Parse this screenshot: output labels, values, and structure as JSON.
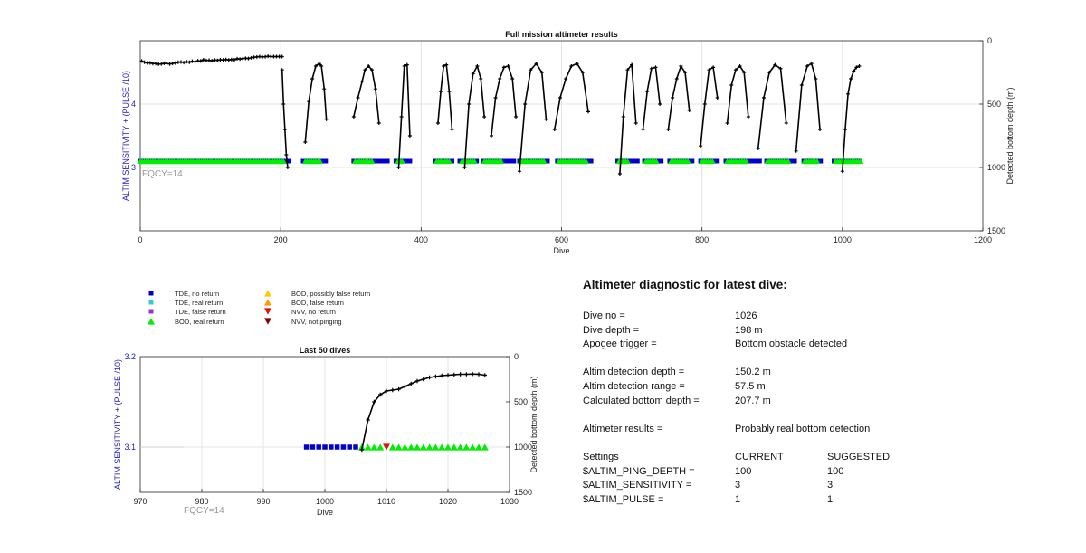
{
  "chart_data": [
    {
      "type": "scatter",
      "title": "Full mission altimeter results",
      "xlabel": "Dive",
      "ylabel_left": "ALTIM SENSITIVITY + (PULSE /10)",
      "ylabel_right": "Detected bottom depth (m)",
      "xlim": [
        0,
        1200
      ],
      "xticks": [
        0,
        200,
        400,
        600,
        800,
        1000,
        1200
      ],
      "ylim_left": [
        2,
        5
      ],
      "yticks_left": [
        3,
        4
      ],
      "ylim_right": [
        1500,
        0
      ],
      "yticks_right": [
        0,
        500,
        1000,
        1500
      ],
      "right_axis_reversed": true,
      "grid": true,
      "annotation": "FQCY=14",
      "setting_level": 3.1,
      "tde_no_return_segments": [
        [
          0,
          215
        ],
        [
          232,
          265
        ],
        [
          304,
          355
        ],
        [
          364,
          385
        ],
        [
          420,
          445
        ],
        [
          455,
          482
        ],
        [
          488,
          532
        ],
        [
          540,
          582
        ],
        [
          594,
          644
        ],
        [
          680,
          708
        ],
        [
          718,
          742
        ],
        [
          754,
          786
        ],
        [
          798,
          825
        ],
        [
          834,
          885
        ],
        [
          892,
          935
        ],
        [
          945,
          972
        ],
        [
          988,
          1026
        ]
      ],
      "bod_real_return_segments": [
        [
          0,
          205
        ],
        [
          235,
          258
        ],
        [
          306,
          332
        ],
        [
          367,
          375
        ],
        [
          422,
          440
        ],
        [
          458,
          478
        ],
        [
          490,
          515
        ],
        [
          542,
          575
        ],
        [
          596,
          636
        ],
        [
          682,
          695
        ],
        [
          720,
          735
        ],
        [
          756,
          780
        ],
        [
          800,
          815
        ],
        [
          836,
          865
        ],
        [
          893,
          925
        ],
        [
          946,
          965
        ],
        [
          990,
          1026
        ]
      ],
      "bottom_depth_segments": [
        {
          "x": [
            2,
            6,
            10,
            14,
            18,
            22,
            26,
            30,
            34,
            38,
            42,
            46,
            50,
            54,
            58,
            62,
            66,
            70,
            74,
            78,
            82,
            86,
            90,
            94,
            98,
            102,
            106,
            110,
            114,
            118,
            122,
            126,
            130,
            134,
            138,
            142,
            146,
            150,
            154,
            158,
            162,
            166,
            170,
            174,
            178,
            182,
            186,
            190,
            194,
            198,
            202
          ],
          "y": [
            160,
            170,
            175,
            175,
            180,
            180,
            185,
            183,
            178,
            180,
            183,
            179,
            176,
            170,
            168,
            172,
            166,
            170,
            162,
            166,
            158,
            160,
            150,
            156,
            154,
            158,
            152,
            155,
            150,
            152,
            148,
            152,
            148,
            150,
            142,
            145,
            140,
            138,
            140,
            135,
            130,
            128,
            125,
            128,
            126,
            122,
            125,
            125,
            125,
            125,
            125
          ]
        },
        {
          "x": [
            202,
            204,
            206,
            208,
            210
          ],
          "y": [
            230,
            500,
            700,
            900,
            1000
          ]
        },
        {
          "x": [
            235,
            240,
            245,
            250,
            255,
            258,
            262,
            265
          ],
          "y": [
            800,
            480,
            300,
            200,
            180,
            200,
            380,
            620
          ]
        },
        {
          "x": [
            304,
            310,
            316,
            320,
            325,
            330,
            335,
            340
          ],
          "y": [
            600,
            450,
            320,
            230,
            200,
            230,
            380,
            650
          ]
        },
        {
          "x": [
            368,
            372,
            376,
            380,
            384
          ],
          "y": [
            1000,
            600,
            200,
            190,
            750
          ]
        },
        {
          "x": [
            424,
            428,
            432,
            436,
            440,
            444
          ],
          "y": [
            650,
            400,
            200,
            190,
            400,
            700
          ]
        },
        {
          "x": [
            462,
            468,
            474,
            480,
            485,
            490
          ],
          "y": [
            1000,
            500,
            260,
            200,
            300,
            600
          ]
        },
        {
          "x": [
            500,
            506,
            512,
            518,
            524,
            530,
            535
          ],
          "y": [
            750,
            450,
            300,
            210,
            200,
            300,
            600
          ]
        },
        {
          "x": [
            540,
            548,
            556,
            564,
            572,
            578
          ],
          "y": [
            1030,
            500,
            230,
            180,
            250,
            620
          ]
        },
        {
          "x": [
            590,
            598,
            606,
            614,
            622,
            630,
            638
          ],
          "y": [
            700,
            450,
            300,
            200,
            180,
            250,
            560
          ]
        },
        {
          "x": [
            683,
            688,
            694,
            700,
            706
          ],
          "y": [
            1050,
            600,
            230,
            190,
            650
          ]
        },
        {
          "x": [
            716,
            722,
            728,
            734,
            740
          ],
          "y": [
            700,
            400,
            220,
            210,
            500
          ]
        },
        {
          "x": [
            752,
            758,
            764,
            770,
            776,
            782
          ],
          "y": [
            700,
            450,
            300,
            200,
            250,
            550
          ]
        },
        {
          "x": [
            798,
            804,
            810,
            816,
            822
          ],
          "y": [
            830,
            500,
            230,
            210,
            450
          ]
        },
        {
          "x": [
            836,
            842,
            848,
            854,
            860,
            866
          ],
          "y": [
            650,
            350,
            230,
            200,
            250,
            600
          ]
        },
        {
          "x": [
            880,
            888,
            896,
            904,
            912,
            920
          ],
          "y": [
            850,
            450,
            250,
            190,
            220,
            650
          ]
        },
        {
          "x": [
            934,
            942,
            950,
            956,
            962,
            968
          ],
          "y": [
            870,
            350,
            200,
            180,
            300,
            700
          ]
        },
        {
          "x": [
            1000,
            1004,
            1008,
            1012,
            1016,
            1020,
            1024
          ],
          "y": [
            1030,
            700,
            420,
            300,
            240,
            210,
            200
          ]
        }
      ]
    },
    {
      "type": "scatter",
      "title": "Last 50 dives",
      "xlabel": "Dive",
      "ylabel_left": "ALTIM SENSITIVITY + (PULSE /10)",
      "ylabel_right": "Detected bottom depth (m)",
      "xlim": [
        970,
        1030
      ],
      "xticks": [
        970,
        980,
        990,
        1000,
        1010,
        1020,
        1030
      ],
      "ylim_left": [
        3.05,
        3.2
      ],
      "yticks_left": [
        3.1,
        3.2
      ],
      "ylim_right": [
        1500,
        0
      ],
      "yticks_right": [
        0,
        500,
        1000,
        1500
      ],
      "right_axis_reversed": true,
      "grid": true,
      "annotation": "FQCY=14",
      "setting_level": 3.1,
      "tde_no_return_x": [
        997,
        998,
        999,
        1000,
        1001,
        1002,
        1003,
        1004,
        1005
      ],
      "bod_real_return_x": [
        1006,
        1007,
        1008,
        1009,
        1011,
        1012,
        1013,
        1014,
        1015,
        1016,
        1017,
        1018,
        1019,
        1020,
        1021,
        1022,
        1023,
        1024,
        1025,
        1026
      ],
      "nvv_no_return_x": [
        1010
      ],
      "bottom_depth": {
        "x": [
          1006,
          1007,
          1008,
          1009,
          1010,
          1011,
          1012,
          1013,
          1014,
          1015,
          1016,
          1017,
          1018,
          1019,
          1020,
          1021,
          1022,
          1023,
          1024,
          1025,
          1026
        ],
        "y": [
          1030,
          700,
          500,
          420,
          380,
          370,
          360,
          330,
          300,
          270,
          250,
          230,
          220,
          210,
          205,
          200,
          195,
          195,
          192,
          195,
          205
        ]
      }
    }
  ],
  "legend": [
    {
      "label": "TDE, no return",
      "marker": "square",
      "color": "#0000cc"
    },
    {
      "label": "TDE, real return",
      "marker": "square",
      "color": "#33cccc"
    },
    {
      "label": "TDE, false return",
      "marker": "square",
      "color": "#9933cc"
    },
    {
      "label": "BOD, real return",
      "marker": "triangle-up",
      "color": "#00ee00"
    },
    {
      "label": "BOD, possibly false return",
      "marker": "triangle-up",
      "color": "#ffcc00"
    },
    {
      "label": "BOD, false return",
      "marker": "triangle-up",
      "color": "#ff9900"
    },
    {
      "label": "NVV, no return",
      "marker": "triangle-down",
      "color": "#dd1111"
    },
    {
      "label": "NVV, not pinging",
      "marker": "triangle-down",
      "color": "#880000"
    }
  ],
  "colors": {
    "axis_left": "#1f1fb4",
    "annotation": "#999999",
    "depth_line": "#000000"
  },
  "diagnostic": {
    "title": "Altimeter diagnostic for latest dive:",
    "dive_no_label": "Dive no =",
    "dive_no_value": "1026",
    "dive_depth_label": "Dive depth =",
    "dive_depth_value": "198 m",
    "apogee_label": "Apogee trigger =",
    "apogee_value": "Bottom obstacle detected",
    "altim_det_depth_label": "Altim detection depth =",
    "altim_det_depth_value": "150.2 m",
    "altim_det_range_label": "Altim detection range =",
    "altim_det_range_value": "57.5 m",
    "calc_bottom_label": "Calculated bottom depth =",
    "calc_bottom_value": "207.7 m",
    "results_label": "Altimeter results =",
    "results_value": "Probably real bottom detection",
    "settings_label": "Settings",
    "current_label": "CURRENT",
    "suggested_label": "SUGGESTED",
    "ping_depth_label": "$ALTIM_PING_DEPTH =",
    "ping_depth_current": "100",
    "ping_depth_suggested": "100",
    "sensitivity_label": "$ALTIM_SENSITIVITY =",
    "sensitivity_current": "3",
    "sensitivity_suggested": "3",
    "pulse_label": "$ALTIM_PULSE =",
    "pulse_current": "1",
    "pulse_suggested": "1"
  }
}
